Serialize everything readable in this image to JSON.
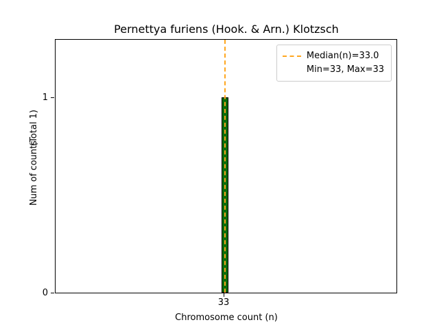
{
  "title": "Pernettya furiens (Hook. & Arn.) Klotzsch",
  "axes": {
    "xlabel": "Chromosome count (n)",
    "ylabel": "Num of counts",
    "ylabel_secondary": "(Total 1)",
    "yticks": [
      "1",
      "0"
    ],
    "xticks": [
      "33"
    ]
  },
  "legend": {
    "median_label": "Median(n)=33.0",
    "minmax_label": "Min=33, Max=33"
  },
  "colors": {
    "bar_fill": "#0a6b0a",
    "bar_edge": "#000000",
    "median_line": "#ffa61e",
    "legend_border": "#cccccc"
  },
  "chart_data": {
    "type": "bar",
    "title": "Pernettya furiens (Hook. & Arn.) Klotzsch",
    "categories": [
      33
    ],
    "values": [
      1
    ],
    "xlabel": "Chromosome count (n)",
    "ylabel": "Num of counts (Total 1)",
    "ylim": [
      0,
      1.3
    ],
    "xticks": [
      33
    ],
    "yticks": [
      0,
      1
    ],
    "grid": false,
    "legend_position": "upper right",
    "series": [
      {
        "name": "counts-histogram",
        "x": [
          33
        ],
        "values": [
          1
        ],
        "style": "bar",
        "color": "#0a6b0a"
      },
      {
        "name": "Median(n)=33.0",
        "x": 33.0,
        "style": "vertical-dashed-line",
        "color": "#ffa61e"
      }
    ],
    "stats": {
      "median": 33.0,
      "min": 33,
      "max": 33,
      "total": 1
    }
  }
}
